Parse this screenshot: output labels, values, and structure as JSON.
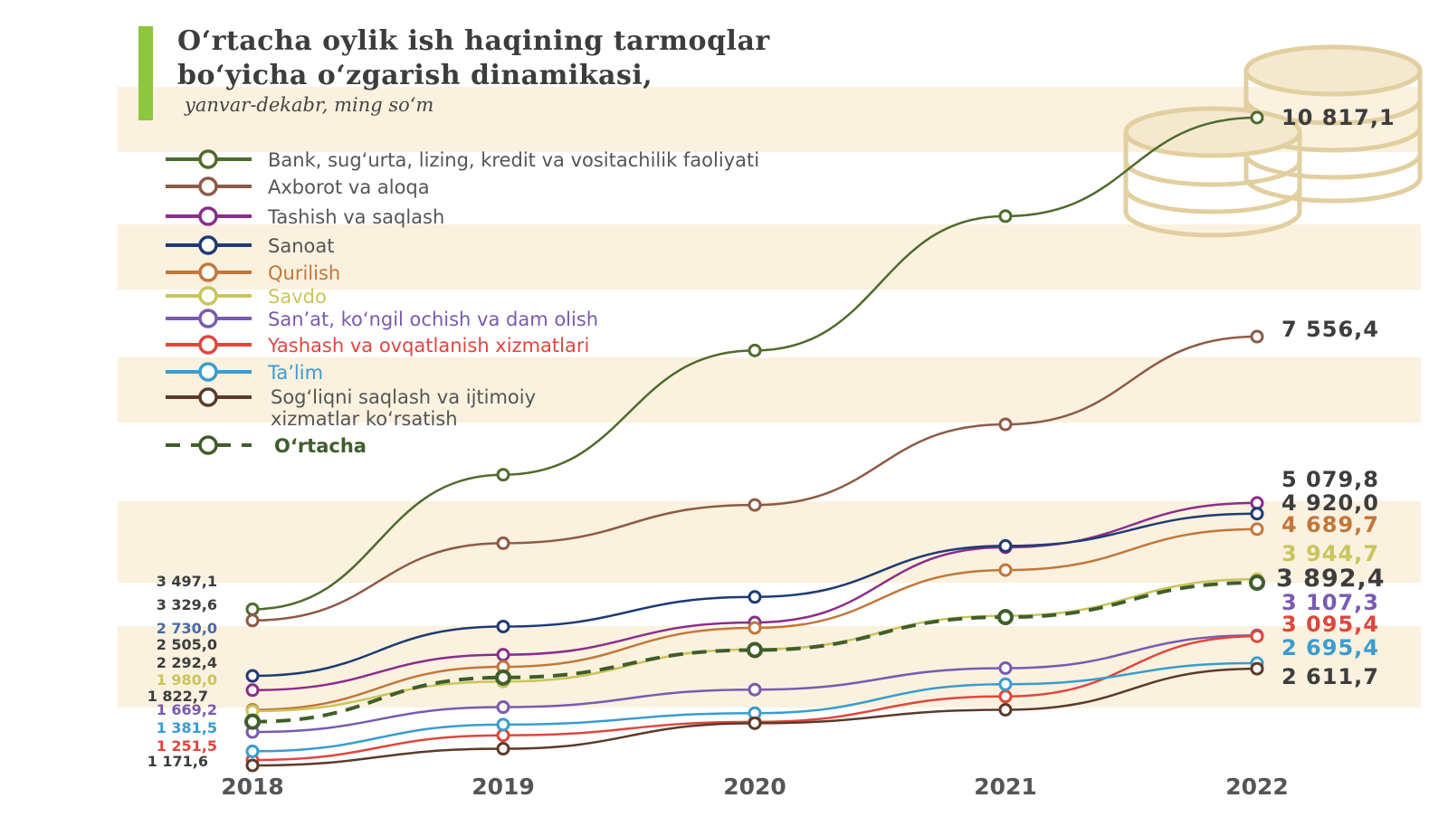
{
  "title_line1": "O‘rtacha oylik ish haqining tarmoqlar",
  "title_line2": "bo‘yicha o‘zgarish dinamikasi,",
  "subtitle": "yanvar-dekabr, ming so‘m",
  "chart_data": {
    "type": "line",
    "x": [
      "2018",
      "2019",
      "2020",
      "2021",
      "2022"
    ],
    "ylim": [
      1000,
      11000
    ],
    "grid": false,
    "legend_position": "top-left",
    "series": [
      {
        "name": "Bank, sug‘urta, lizing, kredit va vositachilik faoliyati",
        "color": "#4e6b2c",
        "dashed": false,
        "values": [
          3497.1,
          5500,
          7350,
          9350,
          10817.1
        ],
        "end_label": "10 817,1",
        "start_label": "3 497,1",
        "label_color": "#3d3d3d"
      },
      {
        "name": "Axborot va aloqa",
        "color": "#8e5a45",
        "dashed": false,
        "values": [
          3329.6,
          4480,
          5050,
          6250,
          7556.4
        ],
        "end_label": "7 556,4",
        "start_label": "3 329,6",
        "label_color": "#3d3d3d"
      },
      {
        "name": "Tashish va saqlash",
        "color": "#8b2d8a",
        "dashed": false,
        "values": [
          2292.4,
          2820,
          3300,
          4420,
          5079.8
        ],
        "end_label": "5 079,8",
        "start_label": "2 292,4",
        "label_color": "#3d3d3d"
      },
      {
        "name": "Sanoat",
        "color": "#1f3b73",
        "dashed": false,
        "values": [
          2505.0,
          3240,
          3680,
          4440,
          4920.0
        ],
        "end_label": "4 920,0",
        "start_label": "2 505,0",
        "label_color": "#3d3d3d"
      },
      {
        "name": "Qurilish",
        "color": "#c2773a",
        "dashed": false,
        "values": [
          2000,
          2640,
          3220,
          4080,
          4689.7
        ],
        "end_label": "4 689,7",
        "start_label": "",
        "label_color": "#c2773a"
      },
      {
        "name": "Savdo",
        "color": "#c9c55a",
        "dashed": false,
        "values": [
          1980.0,
          2420,
          2900,
          3400,
          3944.7
        ],
        "end_label": "3 944,7",
        "start_label": "1 980,0",
        "label_color": "#c9c55a"
      },
      {
        "name": "San’at, ko‘ngil ochish va dam olish",
        "color": "#7a5ab0",
        "dashed": false,
        "values": [
          1669.2,
          2040,
          2300,
          2620,
          3107.3
        ],
        "end_label": "3 107,3",
        "start_label": "1 669,2",
        "label_color": "#7a5ab0"
      },
      {
        "name": "Yashash va ovqatlanish xizmatlari",
        "color": "#e0463c",
        "dashed": false,
        "values": [
          1251.5,
          1620,
          1820,
          2200,
          3095.4
        ],
        "end_label": "3 095,4",
        "start_label": "1 251,5",
        "label_color": "#e0463c"
      },
      {
        "name": "Ta’lim",
        "color": "#3a9ccf",
        "dashed": false,
        "values": [
          1381.5,
          1780,
          1950,
          2380,
          2695.4
        ],
        "end_label": "2 695,4",
        "start_label": "1 381,5",
        "label_color": "#3a9ccf"
      },
      {
        "name": "Sog‘liqni saqlash va ijtimoiy xizmatlar ko‘rsatish",
        "color": "#5b3a2a",
        "dashed": false,
        "values": [
          1171.6,
          1420,
          1800,
          2000,
          2611.7
        ],
        "end_label": "2 611,7",
        "start_label": "1 171,6",
        "label_color": "#3d3d3d"
      },
      {
        "name": "O‘rtacha",
        "color": "#3f5e2a",
        "dashed": true,
        "values": [
          1822.7,
          2480,
          2890,
          3380,
          3892.4
        ],
        "end_label": "3 892,4",
        "start_label": "1 822,7",
        "label_color": "#3d3d3d"
      }
    ],
    "side_labels": [
      {
        "text": "2 730,0",
        "color": "#4a68a5"
      }
    ]
  }
}
